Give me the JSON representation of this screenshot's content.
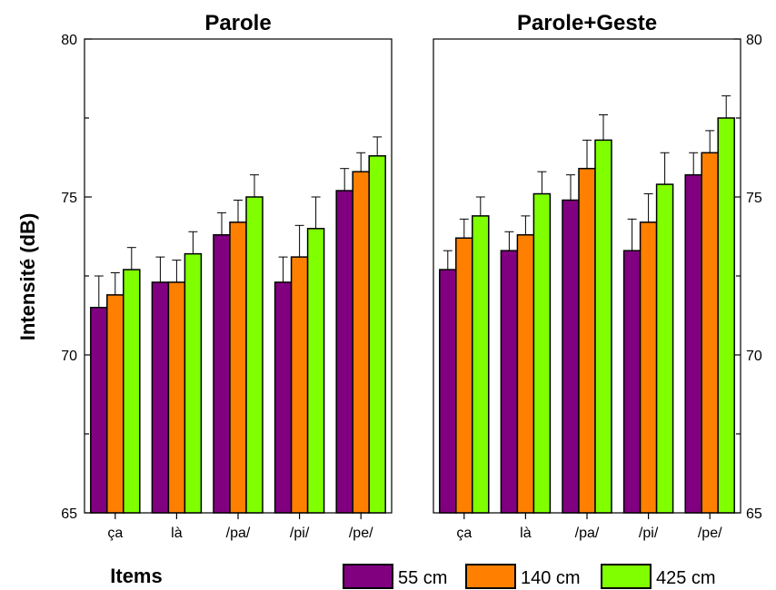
{
  "chart_data": {
    "type": "bar",
    "ylabel": "Intensité (dB)",
    "xlabel": "Items",
    "ylim": [
      65,
      80
    ],
    "yticks": [
      "65",
      "70",
      "75",
      "80"
    ],
    "categories": [
      "ça",
      "là",
      "/pa/",
      "/pi/",
      "/pe/"
    ],
    "legend_position": "bottom",
    "error_bars": true,
    "panels": [
      {
        "title": "Parole",
        "series": [
          {
            "name": "55 cm",
            "color": "#800080",
            "values": [
              71.5,
              72.3,
              73.8,
              72.3,
              75.2
            ],
            "errors": [
              1.0,
              0.8,
              0.7,
              0.8,
              0.7
            ]
          },
          {
            "name": "140 cm",
            "color": "#ff8000",
            "values": [
              71.9,
              72.3,
              74.2,
              73.1,
              75.8
            ],
            "errors": [
              0.7,
              0.7,
              0.7,
              1.0,
              0.6
            ]
          },
          {
            "name": "425 cm",
            "color": "#80ff00",
            "values": [
              72.7,
              73.2,
              75.0,
              74.0,
              76.3
            ],
            "errors": [
              0.7,
              0.7,
              0.7,
              1.0,
              0.6
            ]
          }
        ]
      },
      {
        "title": "Parole+Geste",
        "series": [
          {
            "name": "55 cm",
            "color": "#800080",
            "values": [
              72.7,
              73.3,
              74.9,
              73.3,
              75.7
            ],
            "errors": [
              0.6,
              0.6,
              0.8,
              1.0,
              0.7
            ]
          },
          {
            "name": "140 cm",
            "color": "#ff8000",
            "values": [
              73.7,
              73.8,
              75.9,
              74.2,
              76.4
            ],
            "errors": [
              0.6,
              0.6,
              0.9,
              0.9,
              0.7
            ]
          },
          {
            "name": "425 cm",
            "color": "#80ff00",
            "values": [
              74.4,
              75.1,
              76.8,
              75.4,
              77.5
            ],
            "errors": [
              0.6,
              0.7,
              0.8,
              1.0,
              0.7
            ]
          }
        ]
      }
    ]
  }
}
